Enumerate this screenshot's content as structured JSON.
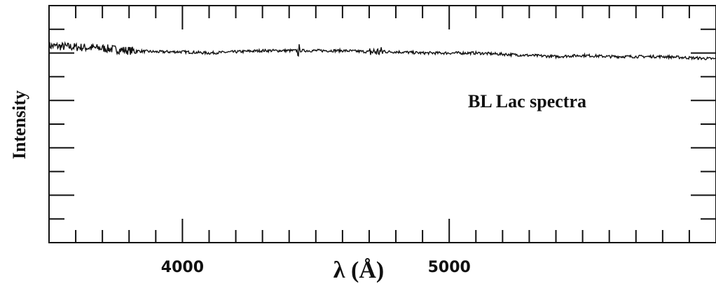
{
  "chart_data": {
    "type": "line",
    "annotation": "BL Lac spectra",
    "xlabel": "λ (Å)",
    "ylabel": "Intensity",
    "xlim": [
      3500,
      6000
    ],
    "ylim": [
      0,
      1
    ],
    "x_ticks": [
      4000,
      5000
    ],
    "x_tick_labels": [
      "4000",
      "5000"
    ],
    "grid": false,
    "series": [
      {
        "x": [
          3500,
          3600,
          3700,
          3800,
          3900,
          4000,
          4100,
          4200,
          4300,
          4400,
          4500,
          4600,
          4700,
          4800,
          4900,
          5000,
          5100,
          5200,
          5300,
          5400,
          5500,
          5600,
          5700,
          5800,
          5900,
          6000
        ],
        "y": [
          0.83,
          0.825,
          0.82,
          0.81,
          0.805,
          0.805,
          0.8,
          0.805,
          0.81,
          0.81,
          0.81,
          0.81,
          0.805,
          0.805,
          0.8,
          0.8,
          0.8,
          0.795,
          0.79,
          0.785,
          0.79,
          0.785,
          0.785,
          0.785,
          0.78,
          0.775
        ]
      }
    ]
  }
}
